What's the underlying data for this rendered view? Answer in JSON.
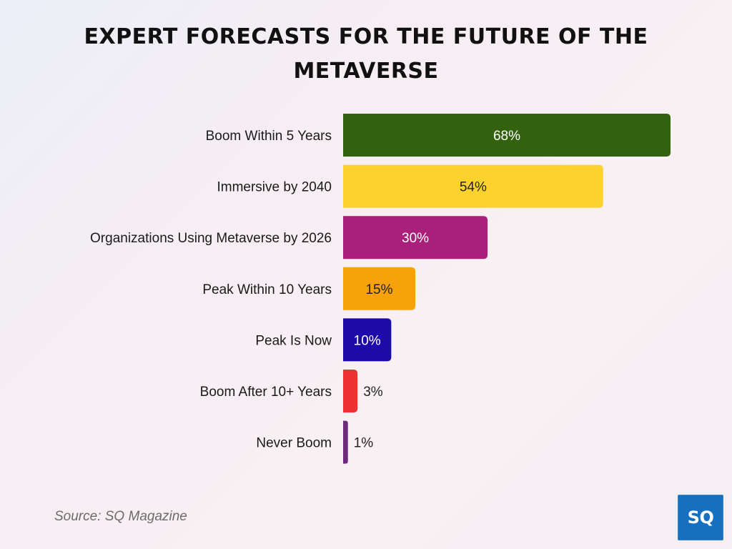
{
  "title": "EXPERT FORECASTS FOR THE FUTURE OF THE METAVERSE",
  "source": "Source: SQ Magazine",
  "logo": {
    "text": "SQ",
    "color": "#1770bf"
  },
  "chart_data": {
    "type": "bar",
    "orientation": "horizontal",
    "title": "EXPERT FORECASTS FOR THE FUTURE OF THE METAVERSE",
    "categories": [
      "Boom Within 5 Years",
      "Immersive by 2040",
      "Organizations Using Metaverse by 2026",
      "Peak Within 10 Years",
      "Peak Is Now",
      "Boom After 10+ Years",
      "Never Boom"
    ],
    "values": [
      68,
      54,
      30,
      15,
      10,
      3,
      1
    ],
    "labels": [
      "68%",
      "54%",
      "30%",
      "15%",
      "10%",
      "3%",
      "1%"
    ],
    "colors": [
      "#33620f",
      "#fdd22f",
      "#a91f7a",
      "#f8a20b",
      "#1c0aa9",
      "#ee3131",
      "#6b2a7a"
    ],
    "label_colors": [
      "#ffffff",
      "#222222",
      "#ffffff",
      "#222222",
      "#ffffff",
      "#222222",
      "#222222"
    ],
    "unit": "%",
    "xlim": [
      0,
      68
    ],
    "grid": false,
    "legend": "none"
  }
}
